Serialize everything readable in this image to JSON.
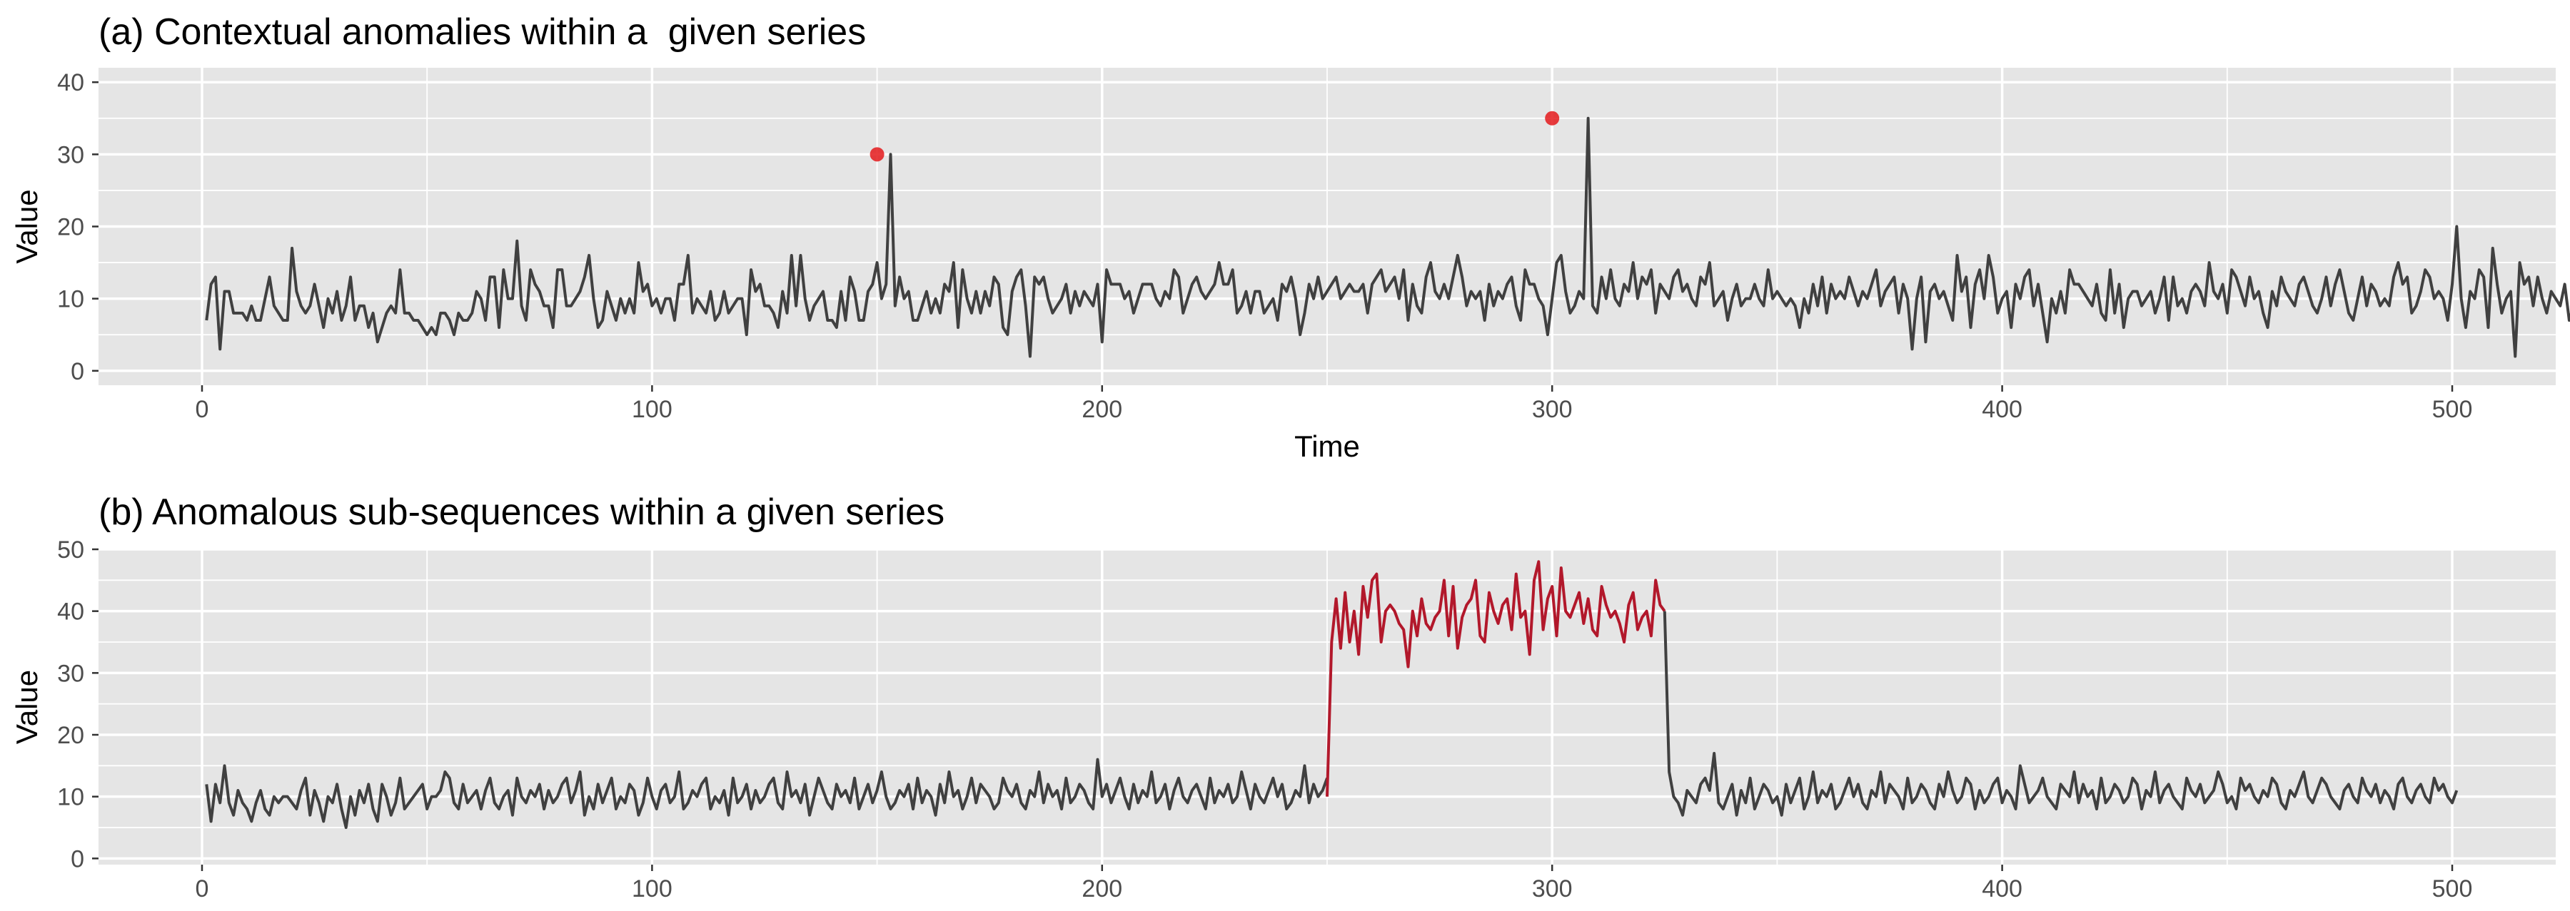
{
  "chart_data": [
    {
      "type": "line",
      "title": "(a) Contextual anomalies within a  given series",
      "xlabel": "Time",
      "ylabel": "Value",
      "xlim": [
        -23,
        523
      ],
      "ylim": [
        -2,
        42
      ],
      "x_ticks": [
        0,
        100,
        200,
        300,
        400,
        500
      ],
      "y_ticks": [
        0,
        10,
        20,
        30,
        40
      ],
      "x": {
        "start": 1,
        "end": 500,
        "step": 1
      },
      "series": [
        {
          "color": "#404040",
          "values": [
            7,
            12,
            13,
            3,
            11,
            11,
            8,
            8,
            8,
            7,
            9,
            7,
            7,
            10,
            13,
            9,
            8,
            7,
            7,
            17,
            11,
            9,
            8,
            9,
            12,
            9,
            6,
            10,
            8,
            11,
            7,
            9,
            13,
            7,
            9,
            9,
            6,
            8,
            4,
            6,
            8,
            9,
            8,
            14,
            8,
            8,
            7,
            7,
            6,
            5,
            6,
            5,
            8,
            8,
            7,
            5,
            8,
            7,
            7,
            8,
            11,
            10,
            7,
            13,
            13,
            6,
            14,
            10,
            10,
            18,
            9,
            7,
            14,
            12,
            11,
            9,
            9,
            6,
            14,
            14,
            9,
            9,
            10,
            11,
            13,
            16,
            10,
            6,
            7,
            11,
            9,
            7,
            10,
            8,
            10,
            8,
            15,
            11,
            12,
            9,
            10,
            8,
            10,
            10,
            7,
            12,
            12,
            16,
            8,
            10,
            9,
            8,
            11,
            7,
            8,
            11,
            8,
            9,
            10,
            10,
            5,
            14,
            11,
            12,
            9,
            9,
            8,
            6,
            11,
            8,
            16,
            9,
            16,
            10,
            7,
            9,
            10,
            11,
            7,
            7,
            6,
            11,
            7,
            13,
            11,
            7,
            7,
            11,
            12,
            15,
            10,
            12,
            30,
            9,
            13,
            10,
            11,
            7,
            7,
            9,
            11,
            8,
            10,
            8,
            12,
            11,
            15,
            6,
            14,
            10,
            8,
            11,
            8,
            11,
            9,
            13,
            12,
            6,
            5,
            11,
            13,
            14,
            9,
            2,
            13,
            12,
            13,
            10,
            8,
            9,
            10,
            12,
            8,
            11,
            9,
            11,
            10,
            9,
            12,
            4,
            14,
            12,
            12,
            12,
            10,
            11,
            8,
            10,
            12,
            12,
            12,
            10,
            9,
            11,
            10,
            14,
            13,
            8,
            10,
            12,
            13,
            11,
            10,
            11,
            12,
            15,
            12,
            12,
            14,
            8,
            9,
            11,
            8,
            11,
            11,
            8,
            9,
            10,
            7,
            12,
            11,
            13,
            10,
            5,
            8,
            12,
            10,
            13,
            10,
            11,
            12,
            13,
            10,
            11,
            12,
            11,
            11,
            12,
            8,
            12,
            13,
            14,
            11,
            12,
            13,
            10,
            14,
            7,
            12,
            9,
            8,
            13,
            15,
            11,
            10,
            12,
            10,
            13,
            16,
            13,
            9,
            11,
            10,
            11,
            7,
            12,
            9,
            11,
            10,
            12,
            13,
            9,
            7,
            14,
            12,
            12,
            10,
            9,
            5,
            10,
            15,
            16,
            11,
            8,
            9,
            11,
            10,
            35,
            9,
            8,
            13,
            10,
            14,
            10,
            9,
            12,
            11,
            15,
            10,
            13,
            12,
            14,
            8,
            12,
            11,
            10,
            13,
            14,
            11,
            12,
            10,
            9,
            13,
            12,
            15,
            9,
            10,
            11,
            7,
            10,
            12,
            9,
            10,
            10,
            12,
            10,
            9,
            14,
            10,
            11,
            10,
            9,
            10,
            9,
            6,
            10,
            8,
            12,
            9,
            13,
            8,
            12,
            10,
            11,
            10,
            13,
            11,
            9,
            11,
            10,
            12,
            14,
            9,
            11,
            12,
            13,
            8,
            12,
            10,
            3,
            10,
            13,
            4,
            11,
            12,
            10,
            11,
            9,
            7,
            16,
            11,
            13,
            6,
            12,
            14,
            10,
            16,
            13,
            8,
            10,
            11,
            6,
            12,
            10,
            13,
            14,
            9,
            12,
            8,
            4,
            10,
            8,
            11,
            8,
            14,
            12,
            12,
            11,
            10,
            9,
            12,
            8,
            7,
            14,
            8,
            12,
            6,
            10,
            11,
            11,
            9,
            10,
            11,
            8,
            10,
            13,
            7,
            13,
            9,
            10,
            8,
            11,
            12,
            11,
            9,
            15,
            11,
            10,
            12,
            8,
            14,
            13,
            11,
            9,
            13,
            10,
            11,
            8,
            6,
            11,
            9,
            13,
            11,
            10,
            9,
            12,
            13,
            11,
            9,
            8,
            10,
            13,
            9,
            12,
            14,
            11,
            8,
            7,
            10,
            13,
            9,
            12,
            11,
            9,
            10,
            9,
            13,
            15,
            12,
            13,
            8,
            9,
            11,
            14,
            13,
            10,
            11,
            10,
            7,
            12,
            20,
            10,
            6,
            11,
            10,
            14,
            13,
            6,
            17,
            12,
            8,
            10,
            11,
            2,
            15,
            12,
            13,
            9,
            13,
            10,
            8,
            11,
            10,
            9,
            12,
            7,
            9,
            11,
            10,
            10,
            15,
            12,
            14,
            14
          ]
        }
      ],
      "anomaly_points": {
        "color": "#e41a1c",
        "x": [
          150,
          300
        ],
        "y": [
          30,
          35
        ]
      },
      "grid": true,
      "legend": "none"
    },
    {
      "type": "line",
      "title": "(b) Anomalous sub-sequences within a given series",
      "xlabel": "",
      "ylabel": "Value",
      "xlim": [
        -23,
        523
      ],
      "ylim": [
        -1,
        50
      ],
      "x_ticks": [
        0,
        100,
        200,
        300,
        400,
        500
      ],
      "y_ticks": [
        0,
        10,
        20,
        30,
        40,
        50
      ],
      "x": {
        "start": 1,
        "end": 500,
        "step": 1
      },
      "series": [
        {
          "color": "#404040",
          "segment_x": [
            1,
            250
          ],
          "values": [
            12,
            6,
            12,
            9,
            15,
            9,
            7,
            11,
            9,
            8,
            6,
            9,
            11,
            8,
            7,
            10,
            9,
            10,
            10,
            9,
            8,
            11,
            13,
            7,
            11,
            9,
            6,
            10,
            9,
            12,
            8,
            5,
            10,
            7,
            11,
            9,
            12,
            8,
            6,
            12,
            10,
            7,
            9,
            13,
            8,
            9,
            10,
            11,
            12,
            8,
            10,
            10,
            11,
            14,
            13,
            9,
            8,
            12,
            9,
            10,
            11,
            8,
            11,
            13,
            9,
            8,
            10,
            11,
            7,
            13,
            10,
            9,
            11,
            10,
            12,
            8,
            11,
            9,
            10,
            12,
            13,
            9,
            11,
            14,
            7,
            10,
            8,
            12,
            9,
            11,
            13,
            8,
            10,
            9,
            12,
            11,
            7,
            9,
            13,
            10,
            8,
            11,
            12,
            9,
            10,
            14,
            8,
            9,
            11,
            10,
            12,
            13,
            8,
            10,
            9,
            11,
            7,
            13,
            9,
            10,
            12,
            8,
            11,
            9,
            10,
            12,
            13,
            9,
            8,
            14,
            10,
            11,
            9,
            12,
            7,
            10,
            13,
            11,
            9,
            8,
            12,
            10,
            11,
            9,
            13,
            8,
            10,
            12,
            9,
            11,
            14,
            10,
            8,
            9,
            11,
            10,
            12,
            8,
            13,
            9,
            11,
            10,
            7,
            12,
            9,
            14,
            10,
            11,
            8,
            10,
            13,
            9,
            12,
            11,
            10,
            8,
            9,
            13,
            11,
            10,
            12,
            9,
            8,
            11,
            10,
            14,
            9,
            12,
            10,
            11,
            8,
            13,
            9,
            10,
            12,
            11,
            9,
            8,
            16,
            10,
            12,
            9,
            11,
            13,
            10,
            8,
            12,
            9,
            11,
            10,
            14,
            9,
            10,
            12,
            8,
            11,
            13,
            10,
            9,
            11,
            12,
            10,
            8,
            13,
            9,
            11,
            10,
            12,
            9,
            10,
            14,
            11,
            8,
            12,
            10,
            9,
            11,
            13,
            10,
            12,
            8,
            9,
            11,
            10,
            15,
            9,
            12,
            10,
            11,
            13
          ]
        },
        {
          "color": "#b2182b",
          "segment_x": [
            250,
            325
          ],
          "values": [
            10,
            35,
            42,
            34,
            43,
            35,
            40,
            33,
            44,
            39,
            45,
            46,
            35,
            40,
            41,
            40,
            38,
            37,
            31,
            40,
            36,
            42,
            38,
            37,
            39,
            40,
            45,
            36,
            44,
            34,
            39,
            41,
            42,
            45,
            36,
            35,
            43,
            40,
            38,
            41,
            42,
            37,
            46,
            39,
            40,
            33,
            45,
            48,
            37,
            42,
            44,
            36,
            47,
            40,
            39,
            41,
            43,
            38,
            42,
            37,
            36,
            44,
            41,
            39,
            40,
            38,
            35,
            41,
            43,
            37,
            39,
            40,
            36,
            45,
            41,
            40
          ]
        },
        {
          "color": "#404040",
          "segment_x": [
            325,
            500
          ],
          "values": [
            40,
            14,
            10,
            9,
            7,
            11,
            10,
            9,
            12,
            13,
            11,
            17,
            9,
            8,
            10,
            12,
            7,
            11,
            9,
            13,
            8,
            10,
            12,
            11,
            9,
            10,
            7,
            12,
            9,
            11,
            13,
            8,
            10,
            14,
            9,
            11,
            10,
            12,
            8,
            9,
            11,
            13,
            10,
            12,
            9,
            8,
            11,
            10,
            14,
            9,
            12,
            11,
            10,
            8,
            13,
            9,
            10,
            12,
            11,
            9,
            8,
            12,
            10,
            14,
            11,
            9,
            10,
            13,
            12,
            8,
            11,
            9,
            10,
            12,
            13,
            9,
            11,
            10,
            8,
            15,
            12,
            9,
            10,
            11,
            13,
            10,
            9,
            8,
            12,
            11,
            10,
            14,
            9,
            12,
            10,
            11,
            8,
            13,
            9,
            10,
            12,
            11,
            9,
            10,
            13,
            12,
            8,
            11,
            10,
            14,
            9,
            11,
            12,
            10,
            9,
            8,
            13,
            11,
            10,
            12,
            9,
            10,
            11,
            14,
            12,
            9,
            10,
            8,
            13,
            11,
            12,
            10,
            9,
            11,
            10,
            13,
            12,
            9,
            8,
            11,
            10,
            12,
            14,
            10,
            9,
            11,
            13,
            12,
            10,
            9,
            8,
            11,
            12,
            10,
            9,
            13,
            11,
            10,
            12,
            9,
            11,
            10,
            8,
            12,
            13,
            10,
            9,
            11,
            12,
            10,
            9,
            13,
            11,
            12,
            10,
            9,
            11
          ]
        }
      ],
      "grid": true,
      "legend": "none"
    }
  ]
}
